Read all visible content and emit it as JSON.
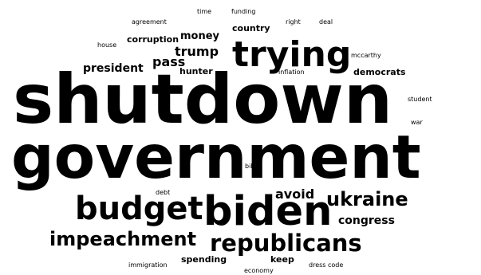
{
  "word_cloud": {
    "words": [
      {
        "text": "shutdown"
      },
      {
        "text": "government"
      },
      {
        "text": "biden"
      },
      {
        "text": "trying"
      },
      {
        "text": "budget"
      },
      {
        "text": "republicans"
      },
      {
        "text": "impeachment"
      },
      {
        "text": "ukraine"
      },
      {
        "text": "avoid"
      },
      {
        "text": "congress"
      },
      {
        "text": "trump"
      },
      {
        "text": "pass"
      },
      {
        "text": "president"
      },
      {
        "text": "money"
      },
      {
        "text": "corruption"
      },
      {
        "text": "hunter"
      },
      {
        "text": "country"
      },
      {
        "text": "democrats"
      },
      {
        "text": "spending"
      },
      {
        "text": "keep"
      },
      {
        "text": "agreement"
      },
      {
        "text": "time"
      },
      {
        "text": "funding"
      },
      {
        "text": "right"
      },
      {
        "text": "deal"
      },
      {
        "text": "house"
      },
      {
        "text": "mccarthy"
      },
      {
        "text": "inflation"
      },
      {
        "text": "student"
      },
      {
        "text": "war"
      },
      {
        "text": "bill"
      },
      {
        "text": "debt"
      },
      {
        "text": "immigration"
      },
      {
        "text": "economy"
      },
      {
        "text": "dress code"
      }
    ],
    "text_color": "#000000",
    "background_color": "#ffffff"
  }
}
